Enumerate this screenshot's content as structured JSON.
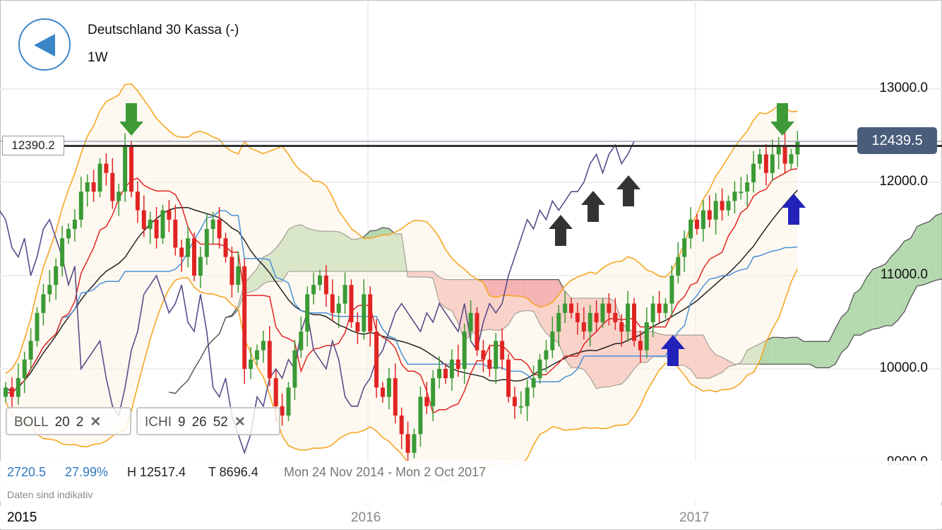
{
  "header": {
    "title": "Deutschland 30 Kassa (-)",
    "period": "1W",
    "back_icon": "back-arrow-icon"
  },
  "indicators": [
    {
      "name": "BOLL",
      "params": [
        "20",
        "2"
      ],
      "remove_icon": "close-icon"
    },
    {
      "name": "ICHI",
      "params": [
        "9",
        "26",
        "52"
      ],
      "remove_icon": "close-icon"
    }
  ],
  "stats": {
    "change": "2720.5",
    "change_pct": "27.99%",
    "high": "H 12517.4",
    "low": "T 8696.4",
    "range": "Mon 24 Nov 2014 - Mon 2 Oct 2017"
  },
  "disclaimer": "Daten sind indikativ",
  "current_price": "12439.5",
  "horizontal_line_label": "12390.2",
  "colors": {
    "up": "#3a9a35",
    "down": "#e02424",
    "bollinger": "#f5a623",
    "tenkan": "#e02424",
    "kijun": "#4a90d9",
    "chikou": "#5b4a8a",
    "sma": "#222222",
    "cloud_bull": "#9ccc94",
    "cloud_bear": "#f19a9a",
    "price_tag": "#4a5e7b",
    "accent": "#3a86c8"
  },
  "chart_data": {
    "type": "candlestick",
    "interval": "weekly",
    "y_ticks": [
      "13000.0",
      "12000.0",
      "11000.0",
      "10000.0",
      "9000.0"
    ],
    "y_range": [
      8650,
      13400
    ],
    "x_ticks": [
      {
        "label": "2015",
        "active": true
      },
      {
        "label": "2016",
        "active": false
      },
      {
        "label": "2017",
        "active": false
      }
    ],
    "horizontal_line": 12390.2,
    "last_price": 12439.5,
    "closes": [
      9800,
      9700,
      9900,
      10100,
      10300,
      10600,
      10800,
      10900,
      11100,
      11400,
      11500,
      11600,
      11900,
      12000,
      11900,
      12200,
      12100,
      11800,
      11900,
      12390,
      11900,
      11700,
      11500,
      11600,
      11400,
      11700,
      11600,
      11300,
      11200,
      11400,
      11000,
      11200,
      11500,
      11600,
      11400,
      11200,
      10900,
      11100,
      10000,
      10100,
      10200,
      10300,
      9900,
      9600,
      9500,
      9800,
      10200,
      10400,
      10800,
      10900,
      11000,
      10800,
      10600,
      10700,
      10900,
      10500,
      10400,
      10800,
      10400,
      9800,
      9700,
      9900,
      9500,
      9300,
      9100,
      9300,
      9700,
      9600,
      9900,
      10000,
      9900,
      10100,
      10000,
      10400,
      10600,
      10200,
      10100,
      10000,
      10300,
      10100,
      9700,
      9600,
      9600,
      9800,
      9900,
      10100,
      10200,
      10400,
      10600,
      10700,
      10600,
      10500,
      10400,
      10600,
      10500,
      10700,
      10600,
      10500,
      10400,
      10700,
      10300,
      10200,
      10500,
      10700,
      10600,
      10700,
      11000,
      11200,
      11400,
      11600,
      11500,
      11700,
      11600,
      11800,
      11700,
      11800,
      11900,
      11900,
      12000,
      12200,
      12300,
      12100,
      12300,
      12400,
      12200,
      12300,
      12440
    ],
    "annotations": [
      {
        "type": "arrow-down",
        "color": "green",
        "at": "2015 peak"
      },
      {
        "type": "arrow-down",
        "color": "green",
        "at": "2017 high"
      },
      {
        "type": "arrow-up",
        "color": "black",
        "count": 3,
        "on": "chikou line"
      },
      {
        "type": "arrow-up",
        "color": "blue",
        "count": 2
      }
    ]
  }
}
